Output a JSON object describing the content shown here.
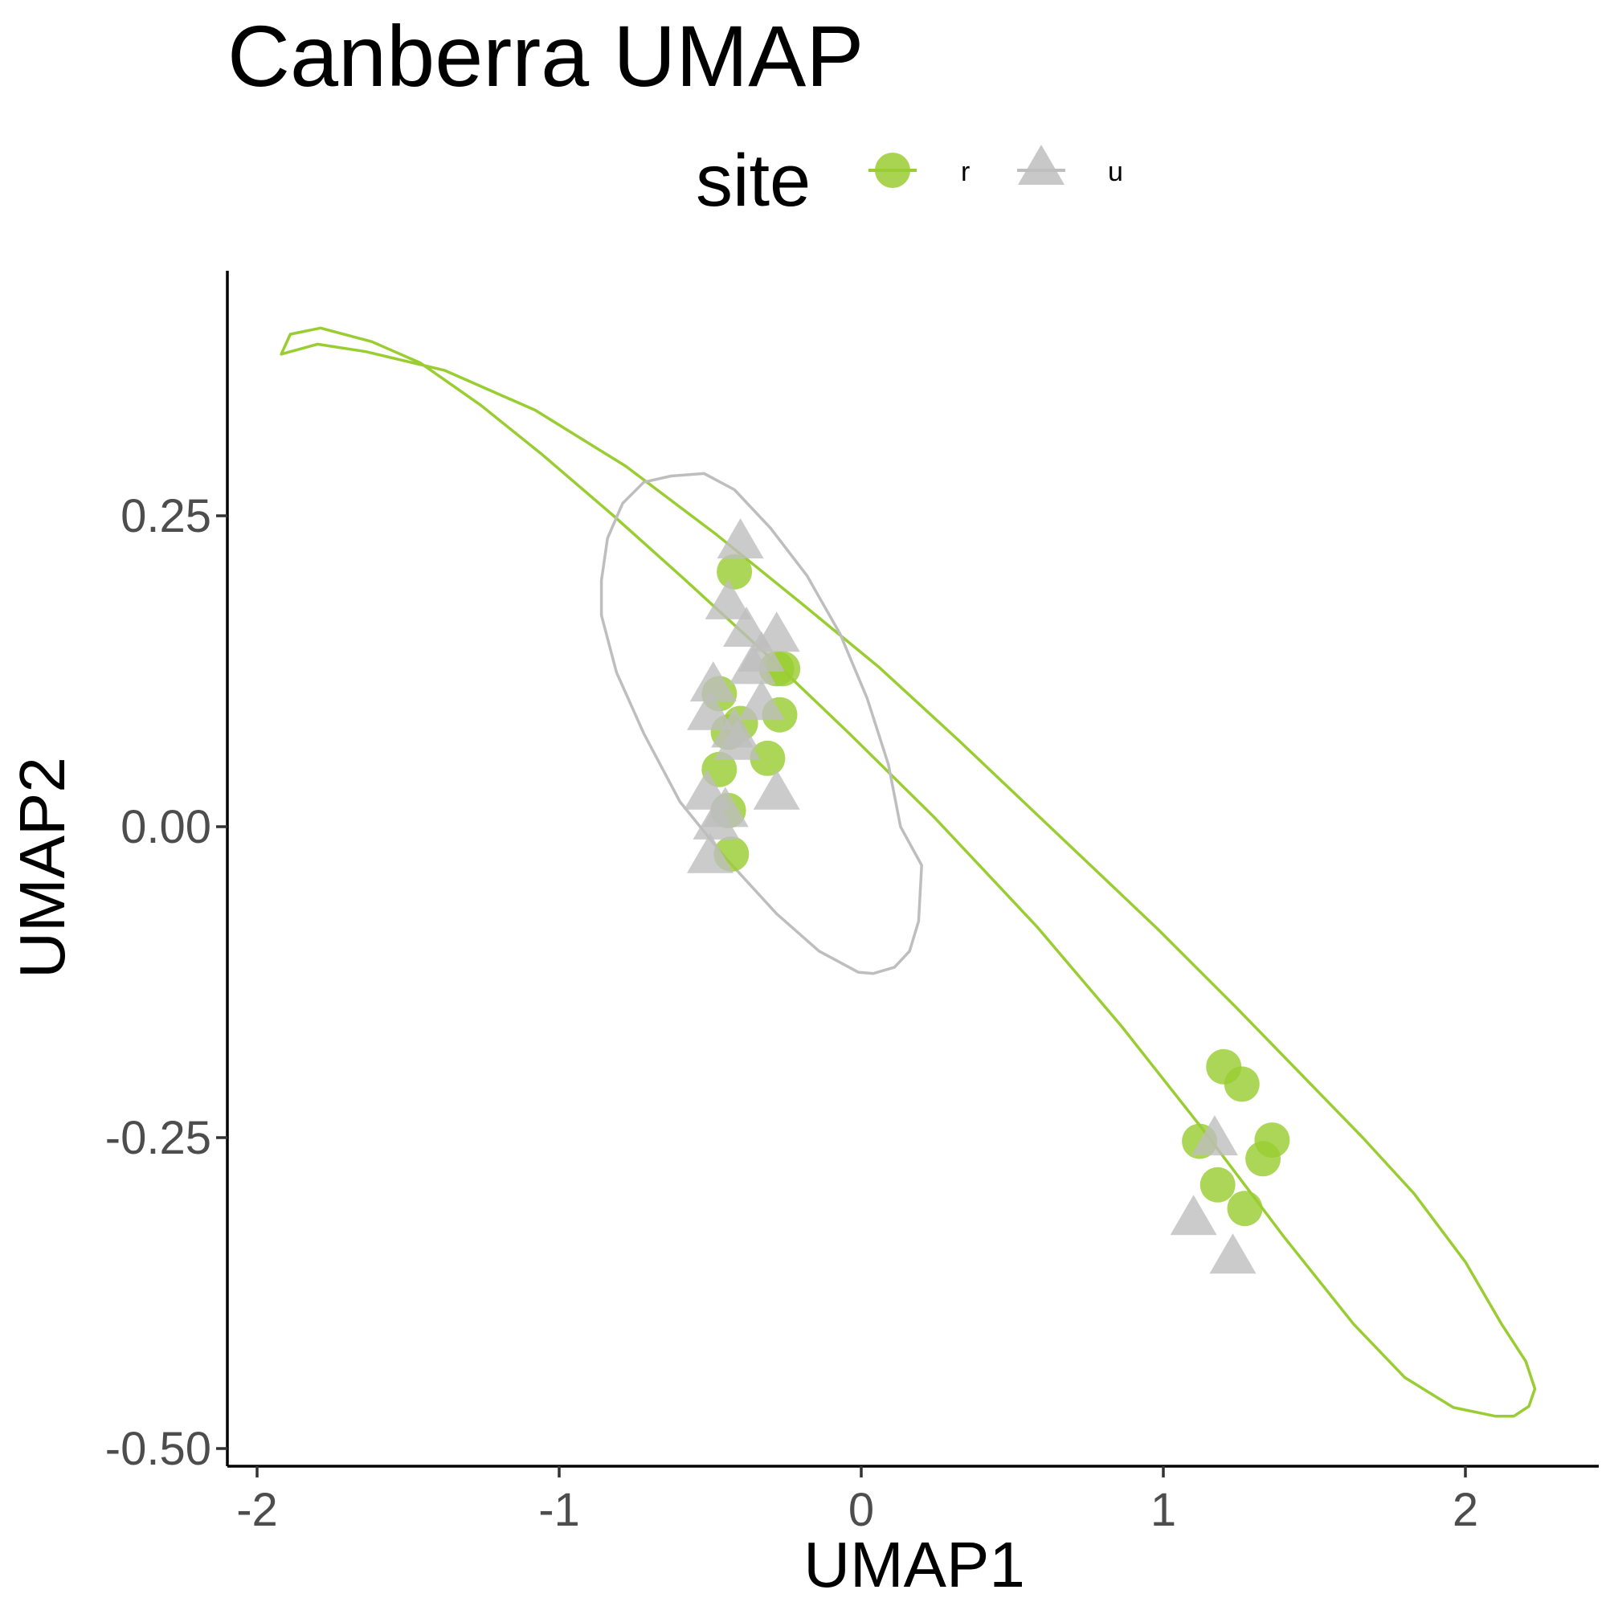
{
  "chart_data": {
    "type": "scatter",
    "title": "Canberra UMAP",
    "xlabel": "UMAP1",
    "ylabel": "UMAP2",
    "xlim": [
      -2.1,
      2.45
    ],
    "ylim": [
      -0.505,
      0.445
    ],
    "x_ticks": [
      {
        "value": -2,
        "label": "-2"
      },
      {
        "value": -1,
        "label": "-1"
      },
      {
        "value": 0,
        "label": "0"
      },
      {
        "value": 1,
        "label": "1"
      },
      {
        "value": 2,
        "label": "2"
      }
    ],
    "y_ticks": [
      {
        "value": 0.25,
        "label": "0.25"
      },
      {
        "value": 0,
        "label": "0.00"
      },
      {
        "value": -0.25,
        "label": "-0.25"
      },
      {
        "value": -0.5,
        "label": "-0.50"
      }
    ],
    "grid": false,
    "legend": {
      "title": "site",
      "position": "top",
      "entries": [
        {
          "label": "r",
          "shape": "circle",
          "color": "#9acd32"
        },
        {
          "label": "u",
          "shape": "triangle",
          "color": "#bebebe"
        }
      ]
    },
    "series": [
      {
        "name": "r",
        "shape": "circle",
        "color": "#9acd32",
        "points": [
          [
            -0.42,
            0.205
          ],
          [
            -0.28,
            0.127
          ],
          [
            -0.26,
            0.127
          ],
          [
            -0.27,
            0.09
          ],
          [
            -0.4,
            0.083
          ],
          [
            -0.44,
            0.076
          ],
          [
            -0.47,
            0.107
          ],
          [
            -0.31,
            0.055
          ],
          [
            -0.47,
            0.046
          ],
          [
            -0.44,
            0.013
          ],
          [
            -0.43,
            -0.022
          ],
          [
            1.2,
            -0.193
          ],
          [
            1.26,
            -0.207
          ],
          [
            1.12,
            -0.253
          ],
          [
            1.36,
            -0.252
          ],
          [
            1.33,
            -0.267
          ],
          [
            1.18,
            -0.288
          ],
          [
            1.27,
            -0.307
          ]
        ]
      },
      {
        "name": "u",
        "shape": "triangle",
        "color": "#bebebe",
        "points": [
          [
            -0.4,
            0.228
          ],
          [
            -0.44,
            0.179
          ],
          [
            -0.38,
            0.157
          ],
          [
            -0.28,
            0.153
          ],
          [
            -0.33,
            0.137
          ],
          [
            -0.36,
            0.127
          ],
          [
            -0.49,
            0.113
          ],
          [
            -0.33,
            0.098
          ],
          [
            -0.5,
            0.09
          ],
          [
            -0.42,
            0.076
          ],
          [
            -0.41,
            0.066
          ],
          [
            -0.28,
            0.026
          ],
          [
            -0.51,
            0.026
          ],
          [
            -0.45,
            0.012
          ],
          [
            -0.48,
            0.002
          ],
          [
            -0.5,
            -0.025
          ],
          [
            1.17,
            -0.252
          ],
          [
            1.1,
            -0.316
          ],
          [
            1.23,
            -0.347
          ]
        ]
      }
    ],
    "ellipses": [
      {
        "series": "r",
        "color": "#9acd32",
        "points": [
          [
            -1.92,
            0.38
          ],
          [
            -1.89,
            0.396
          ],
          [
            -1.79,
            0.401
          ],
          [
            -1.62,
            0.39
          ],
          [
            -1.46,
            0.373
          ],
          [
            -1.26,
            0.339
          ],
          [
            -1.06,
            0.3
          ],
          [
            -0.82,
            0.25
          ],
          [
            -0.59,
            0.2
          ],
          [
            -0.32,
            0.14
          ],
          [
            -0.04,
            0.075
          ],
          [
            0.24,
            0.008
          ],
          [
            0.58,
            -0.08
          ],
          [
            0.86,
            -0.16
          ],
          [
            1.12,
            -0.24
          ],
          [
            1.4,
            -0.33
          ],
          [
            1.63,
            -0.4
          ],
          [
            1.8,
            -0.443
          ],
          [
            1.96,
            -0.467
          ],
          [
            2.1,
            -0.474
          ],
          [
            2.16,
            -0.474
          ],
          [
            2.21,
            -0.466
          ],
          [
            2.23,
            -0.452
          ],
          [
            2.2,
            -0.43
          ],
          [
            2.12,
            -0.4
          ],
          [
            2.0,
            -0.35
          ],
          [
            1.83,
            -0.295
          ],
          [
            1.66,
            -0.25
          ],
          [
            1.46,
            -0.2
          ],
          [
            1.24,
            -0.145
          ],
          [
            0.98,
            -0.082
          ],
          [
            0.62,
            0.001
          ],
          [
            0.32,
            0.07
          ],
          [
            0.06,
            0.128
          ],
          [
            -0.2,
            0.18
          ],
          [
            -0.48,
            0.235
          ],
          [
            -0.78,
            0.29
          ],
          [
            -1.08,
            0.335
          ],
          [
            -1.38,
            0.367
          ],
          [
            -1.64,
            0.382
          ],
          [
            -1.8,
            0.388
          ],
          [
            -1.92,
            0.38
          ]
        ]
      },
      {
        "series": "u",
        "color": "#bebebe",
        "points": [
          [
            -0.63,
            0.282
          ],
          [
            -0.52,
            0.284
          ],
          [
            -0.42,
            0.271
          ],
          [
            -0.3,
            0.24
          ],
          [
            -0.18,
            0.202
          ],
          [
            -0.07,
            0.155
          ],
          [
            0.02,
            0.103
          ],
          [
            0.09,
            0.05
          ],
          [
            0.13,
            0.0
          ],
          [
            0.2,
            -0.031
          ],
          [
            0.19,
            -0.076
          ],
          [
            0.16,
            -0.1
          ],
          [
            0.11,
            -0.113
          ],
          [
            0.04,
            -0.118
          ],
          [
            -0.01,
            -0.117
          ],
          [
            -0.14,
            -0.1
          ],
          [
            -0.28,
            -0.07
          ],
          [
            -0.45,
            -0.025
          ],
          [
            -0.6,
            0.02
          ],
          [
            -0.72,
            0.075
          ],
          [
            -0.81,
            0.124
          ],
          [
            -0.86,
            0.17
          ],
          [
            -0.86,
            0.198
          ],
          [
            -0.84,
            0.232
          ],
          [
            -0.79,
            0.26
          ],
          [
            -0.72,
            0.277
          ],
          [
            -0.63,
            0.282
          ]
        ]
      }
    ]
  }
}
